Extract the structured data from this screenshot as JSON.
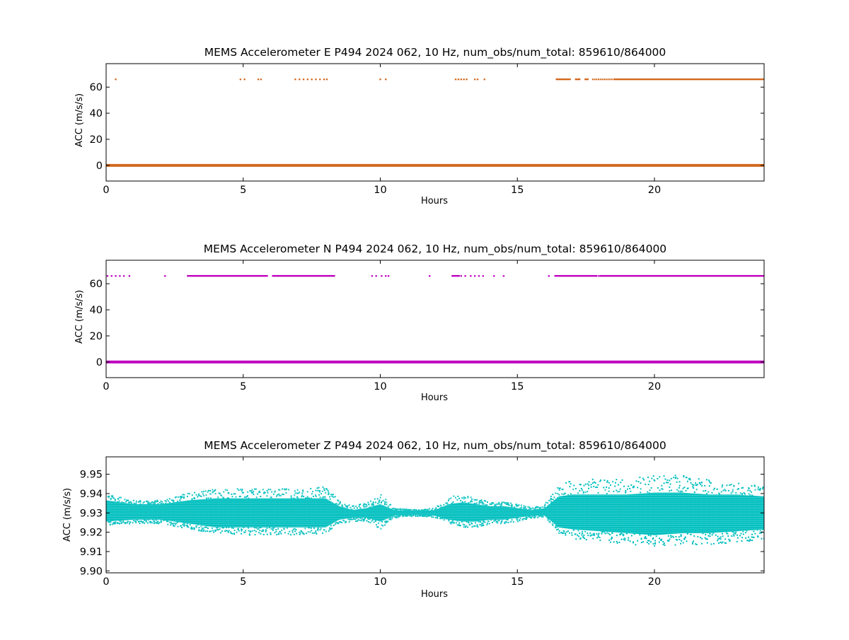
{
  "chart_data": [
    {
      "type": "scatter",
      "title": "MEMS Accelerometer E P494 2024 062, 10 Hz, num_obs/num_total: 859610/864000",
      "xlabel": "Hours",
      "ylabel": "ACC (m/s/s)",
      "xlim": [
        0,
        24
      ],
      "ylim": [
        -12,
        78
      ],
      "xticks": [
        0,
        5,
        10,
        15,
        20
      ],
      "yticks": [
        0,
        20,
        40,
        60
      ],
      "grid": false,
      "color": "#d2691e",
      "series": [
        {
          "role": "baseline",
          "value": 0.0,
          "x_range": [
            0,
            24
          ]
        },
        {
          "role": "spikes",
          "value": 66.0,
          "x": [
            0.35,
            4.9,
            5.05,
            5.55,
            5.65,
            6.9,
            7.05,
            7.2,
            7.35,
            7.5,
            7.65,
            7.8,
            7.95,
            8.05,
            10.0,
            10.2,
            12.75,
            12.85,
            12.95,
            13.05,
            13.15,
            13.45,
            13.55,
            13.8
          ],
          "dense_ranges": [
            [
              16.4,
              16.95
            ],
            [
              17.1,
              17.3
            ],
            [
              17.45,
              17.6
            ],
            [
              18.5,
              24.0
            ]
          ],
          "scatter_ranges": [
            [
              17.75,
              18.5
            ]
          ]
        }
      ]
    },
    {
      "type": "scatter",
      "title": "MEMS Accelerometer N P494 2024 062, 10 Hz, num_obs/num_total: 859610/864000",
      "xlabel": "Hours",
      "ylabel": "ACC (m/s/s)",
      "xlim": [
        0,
        24
      ],
      "ylim": [
        -12,
        78
      ],
      "xticks": [
        0,
        5,
        10,
        15,
        20
      ],
      "yticks": [
        0,
        20,
        40,
        60
      ],
      "grid": false,
      "color": "#bf00bf",
      "series": [
        {
          "role": "baseline",
          "value": 0.0,
          "x_range": [
            0,
            24
          ]
        },
        {
          "role": "spikes",
          "value": 66.0,
          "x": [
            0.05,
            0.2,
            0.35,
            0.5,
            0.65,
            0.85,
            2.15,
            9.7,
            9.85,
            10.05,
            10.2,
            10.3,
            11.8,
            12.95,
            13.1,
            13.3,
            13.45,
            13.6,
            13.75,
            14.15,
            14.5,
            16.15
          ],
          "dense_ranges": [
            [
              2.95,
              5.9
            ],
            [
              6.05,
              8.35
            ],
            [
              12.6,
              12.9
            ],
            [
              16.35,
              17.9
            ],
            [
              18.0,
              24.0
            ]
          ],
          "scatter_ranges": [
            [
              17.9,
              18.0
            ]
          ]
        }
      ]
    },
    {
      "type": "scatter",
      "title": "MEMS Accelerometer Z P494 2024 062, 10 Hz, num_obs/num_total: 859610/864000",
      "xlabel": "Hours",
      "ylabel": "ACC (m/s/s)",
      "xlim": [
        0,
        24
      ],
      "ylim": [
        9.899,
        9.959
      ],
      "xticks": [
        0,
        5,
        10,
        15,
        20
      ],
      "yticks": [
        9.9,
        9.91,
        9.92,
        9.93,
        9.94,
        9.95
      ],
      "ytick_labels": [
        "9.90",
        "9.91",
        "9.92",
        "9.93",
        "9.94",
        "9.95"
      ],
      "grid": false,
      "color": "#00bfbf",
      "series": [
        {
          "role": "envelope",
          "x": [
            0,
            1,
            2,
            3,
            4,
            5,
            6,
            7,
            8,
            8.5,
            9,
            9.5,
            10,
            10.5,
            11,
            11.5,
            12,
            12.5,
            13,
            13.5,
            14,
            14.5,
            15,
            15.5,
            16,
            16.5,
            17,
            18,
            19,
            20,
            21,
            22,
            23,
            24
          ],
          "core_lo": [
            9.9255,
            9.9265,
            9.9265,
            9.9245,
            9.9225,
            9.9225,
            9.9225,
            9.9225,
            9.9225,
            9.9265,
            9.9275,
            9.9275,
            9.9255,
            9.9285,
            9.9288,
            9.9288,
            9.9285,
            9.9265,
            9.9255,
            9.9255,
            9.9265,
            9.9265,
            9.9275,
            9.9285,
            9.9285,
            9.9225,
            9.9215,
            9.9205,
            9.9195,
            9.9185,
            9.9195,
            9.9195,
            9.9205,
            9.9215
          ],
          "core_hi": [
            9.9365,
            9.9345,
            9.9345,
            9.9365,
            9.9375,
            9.9375,
            9.9375,
            9.9375,
            9.9375,
            9.9335,
            9.9315,
            9.9325,
            9.9345,
            9.9315,
            9.9312,
            9.9312,
            9.9315,
            9.9345,
            9.9355,
            9.9345,
            9.9335,
            9.9335,
            9.9325,
            9.9315,
            9.9325,
            9.9385,
            9.9395,
            9.9395,
            9.9395,
            9.9405,
            9.9405,
            9.9395,
            9.9395,
            9.9385
          ],
          "out_lo": [
            9.9235,
            9.9245,
            9.9245,
            9.9215,
            9.9195,
            9.9185,
            9.9185,
            9.9185,
            9.9195,
            9.9245,
            9.9255,
            9.9255,
            9.9215,
            9.9275,
            9.9282,
            9.9282,
            9.9275,
            9.9245,
            9.9225,
            9.9225,
            9.9245,
            9.9245,
            9.9255,
            9.9275,
            9.9275,
            9.9185,
            9.9165,
            9.9155,
            9.9135,
            9.9125,
            9.9135,
            9.9135,
            9.9145,
            9.9165
          ],
          "out_hi": [
            9.9395,
            9.9365,
            9.9365,
            9.9405,
            9.9425,
            9.9425,
            9.9425,
            9.9425,
            9.9435,
            9.9355,
            9.9335,
            9.9355,
            9.9395,
            9.9325,
            9.9318,
            9.9318,
            9.9325,
            9.9385,
            9.9395,
            9.9375,
            9.9355,
            9.9355,
            9.9345,
            9.9325,
            9.9345,
            9.9435,
            9.9475,
            9.9475,
            9.9485,
            9.9495,
            9.9495,
            9.9475,
            9.9455,
            9.9435
          ]
        }
      ]
    }
  ]
}
